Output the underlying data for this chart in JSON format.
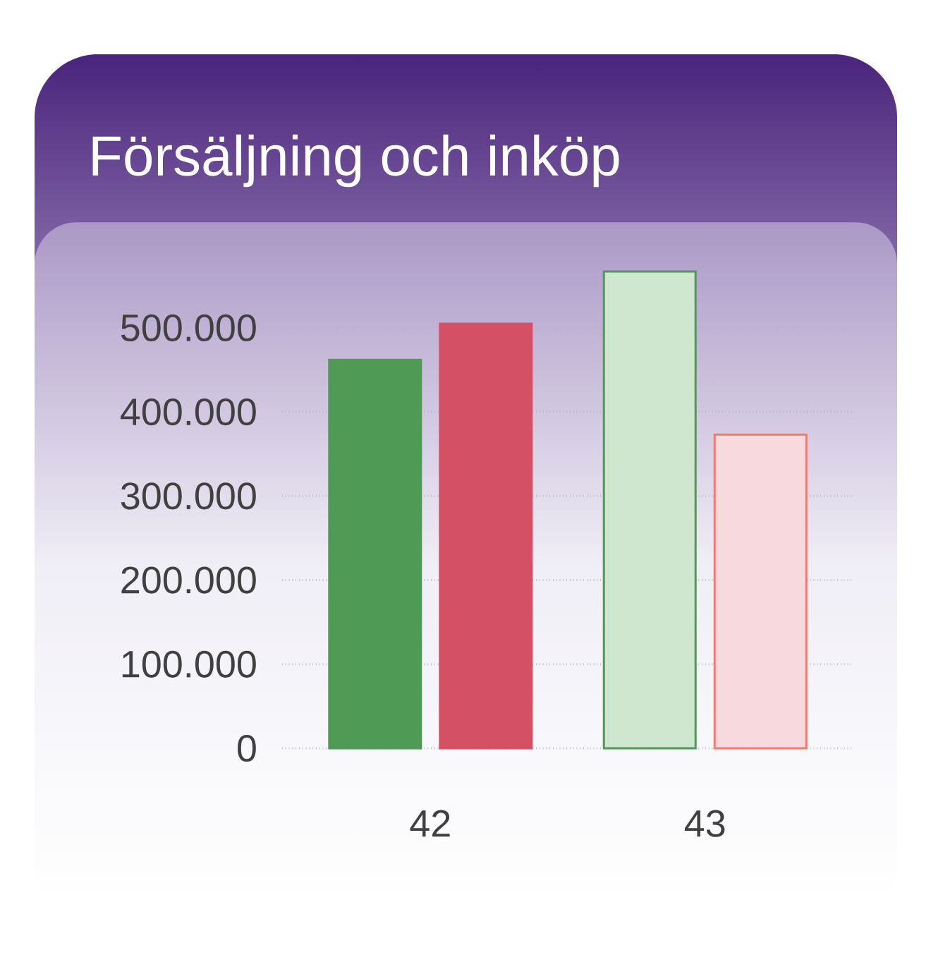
{
  "chart_data": {
    "type": "bar",
    "title": "Försäljning och inköp",
    "categories": [
      "42",
      "43"
    ],
    "series": [
      {
        "color": "#4f9a55",
        "colors": [
          "#4f9a55",
          "#cfe6cf"
        ],
        "values": [
          462000,
          567000
        ]
      },
      {
        "color": "#f57a6e",
        "colors": [
          "#d45064",
          "#f8d9de"
        ],
        "values": [
          505000,
          373000
        ]
      }
    ],
    "yticks": [
      {
        "value": 0,
        "label": "0"
      },
      {
        "value": 100000,
        "label": "100.000"
      },
      {
        "value": 200000,
        "label": "200.000"
      },
      {
        "value": 300000,
        "label": "300.000"
      },
      {
        "value": 400000,
        "label": "400.000"
      },
      {
        "value": 500000,
        "label": "500.000"
      }
    ],
    "ylim": [
      0,
      567000
    ],
    "grid": "y"
  }
}
